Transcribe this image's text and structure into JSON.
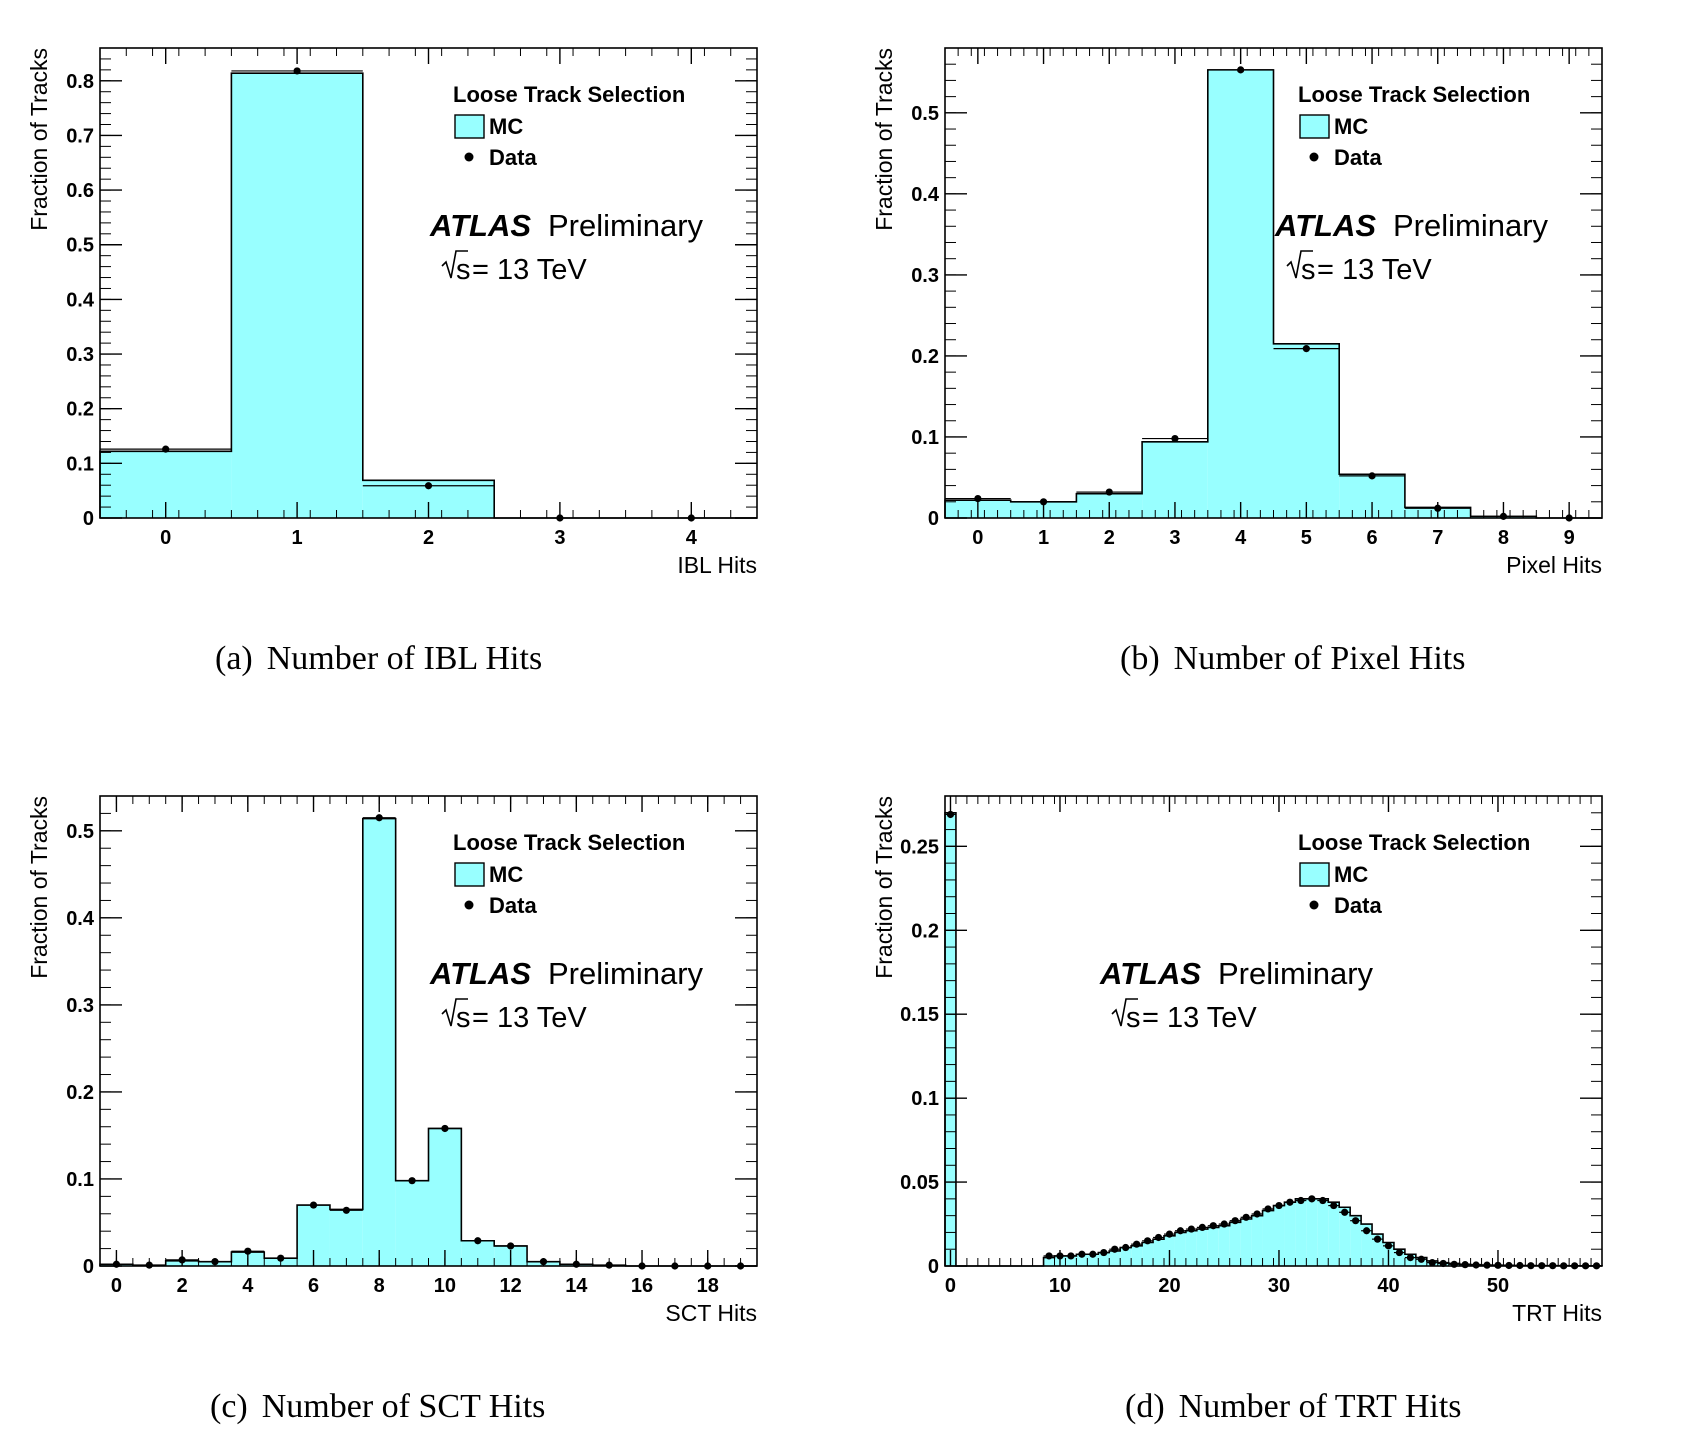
{
  "colors": {
    "mc_fill": "#98ffff",
    "frame": "#000000",
    "data": "#000000"
  },
  "chart_data": [
    {
      "type": "bar",
      "xlabel": "IBL Hits",
      "ylabel": "Fraction of Tracks",
      "xlim": [
        -0.5,
        4.5
      ],
      "ylim": [
        0,
        0.86
      ],
      "xticks": [
        "0",
        "1",
        "2",
        "3",
        "4"
      ],
      "yticks": [
        "0",
        "0.1",
        "0.2",
        "0.3",
        "0.4",
        "0.5",
        "0.6",
        "0.7",
        "0.8"
      ],
      "bin_width": 1,
      "series": [
        {
          "name": "MC",
          "x": [
            0,
            1,
            2,
            3,
            4
          ],
          "values": [
            0.122,
            0.814,
            0.069,
            0.0,
            0.0
          ]
        },
        {
          "name": "Data",
          "x": [
            0,
            1,
            2,
            3,
            4
          ],
          "values": [
            0.126,
            0.818,
            0.059,
            0.0,
            0.0
          ]
        }
      ],
      "legend": {
        "header": "Loose Track Selection",
        "mc": "MC",
        "data": "Data",
        "position": "top-right"
      },
      "atlas": {
        "name": "ATLAS",
        "status": "Preliminary",
        "energy_prefix": "s",
        "energy_suffix": " = 13 TeV"
      },
      "caption": {
        "label": "(a)",
        "text": "Number of IBL Hits"
      }
    },
    {
      "type": "bar",
      "xlabel": "Pixel Hits",
      "ylabel": "Fraction of Tracks",
      "xlim": [
        -0.5,
        9.5
      ],
      "ylim": [
        0,
        0.58
      ],
      "xticks": [
        "0",
        "1",
        "2",
        "3",
        "4",
        "5",
        "6",
        "7",
        "8",
        "9"
      ],
      "yticks": [
        "0",
        "0.1",
        "0.2",
        "0.3",
        "0.4",
        "0.5"
      ],
      "bin_width": 1,
      "series": [
        {
          "name": "MC",
          "x": [
            0,
            1,
            2,
            3,
            4,
            5,
            6,
            7,
            8,
            9
          ],
          "values": [
            0.022,
            0.02,
            0.03,
            0.094,
            0.553,
            0.215,
            0.054,
            0.013,
            0.002,
            0.0
          ]
        },
        {
          "name": "Data",
          "x": [
            0,
            1,
            2,
            3,
            4,
            5,
            6,
            7,
            8,
            9
          ],
          "values": [
            0.024,
            0.02,
            0.032,
            0.098,
            0.553,
            0.209,
            0.052,
            0.012,
            0.002,
            0.0
          ]
        }
      ],
      "legend": {
        "header": "Loose Track Selection",
        "mc": "MC",
        "data": "Data",
        "position": "top-right"
      },
      "atlas": {
        "name": "ATLAS",
        "status": "Preliminary",
        "energy_prefix": "s",
        "energy_suffix": " = 13 TeV"
      },
      "caption": {
        "label": "(b)",
        "text": "Number of Pixel Hits"
      }
    },
    {
      "type": "bar",
      "xlabel": "SCT Hits",
      "ylabel": "Fraction of Tracks",
      "xlim": [
        -0.5,
        19.5
      ],
      "ylim": [
        0,
        0.54
      ],
      "xticks": [
        "0",
        "2",
        "4",
        "6",
        "8",
        "10",
        "12",
        "14",
        "16",
        "18"
      ],
      "xtick_values": [
        0,
        2,
        4,
        6,
        8,
        10,
        12,
        14,
        16,
        18
      ],
      "yticks": [
        "0",
        "0.1",
        "0.2",
        "0.3",
        "0.4",
        "0.5"
      ],
      "bin_width": 1,
      "series": [
        {
          "name": "MC",
          "x": [
            0,
            1,
            2,
            3,
            4,
            5,
            6,
            7,
            8,
            9,
            10,
            11,
            12,
            13,
            14,
            15,
            16,
            17,
            18,
            19
          ],
          "values": [
            0.002,
            0.001,
            0.006,
            0.005,
            0.016,
            0.009,
            0.07,
            0.065,
            0.514,
            0.098,
            0.158,
            0.029,
            0.023,
            0.005,
            0.002,
            0.001,
            0.0,
            0.0,
            0.0,
            0.0
          ]
        },
        {
          "name": "Data",
          "x": [
            0,
            1,
            2,
            3,
            4,
            5,
            6,
            7,
            8,
            9,
            10,
            11,
            12,
            13,
            14,
            15,
            16,
            17,
            18,
            19
          ],
          "values": [
            0.002,
            0.001,
            0.007,
            0.005,
            0.017,
            0.009,
            0.07,
            0.064,
            0.515,
            0.098,
            0.158,
            0.029,
            0.023,
            0.005,
            0.002,
            0.001,
            0.0,
            0.0,
            0.0,
            0.0
          ]
        }
      ],
      "legend": {
        "header": "Loose Track Selection",
        "mc": "MC",
        "data": "Data",
        "position": "top-right"
      },
      "atlas": {
        "name": "ATLAS",
        "status": "Preliminary",
        "energy_prefix": "s",
        "energy_suffix": " = 13 TeV"
      },
      "caption": {
        "label": "(c)",
        "text": "Number of SCT Hits"
      }
    },
    {
      "type": "bar",
      "xlabel": "TRT Hits",
      "ylabel": "Fraction of Tracks",
      "xlim": [
        -0.5,
        59.5
      ],
      "ylim": [
        0,
        0.28
      ],
      "xticks": [
        "0",
        "10",
        "20",
        "30",
        "40",
        "50"
      ],
      "xtick_values": [
        0,
        10,
        20,
        30,
        40,
        50
      ],
      "yticks": [
        "0",
        "0.05",
        "0.1",
        "0.15",
        "0.2",
        "0.25"
      ],
      "yticks_values": [
        0,
        0.05,
        0.1,
        0.15,
        0.2,
        0.25
      ],
      "bin_width": 1,
      "series": [
        {
          "name": "MC",
          "x": [
            0,
            1,
            2,
            3,
            4,
            5,
            6,
            7,
            8,
            9,
            10,
            11,
            12,
            13,
            14,
            15,
            16,
            17,
            18,
            19,
            20,
            21,
            22,
            23,
            24,
            25,
            26,
            27,
            28,
            29,
            30,
            31,
            32,
            33,
            34,
            35,
            36,
            37,
            38,
            39,
            40,
            41,
            42,
            43,
            44,
            45,
            46,
            47,
            48,
            49,
            50,
            51,
            52,
            53,
            54,
            55,
            56,
            57,
            58,
            59
          ],
          "values": [
            0.27,
            0,
            0,
            0,
            0,
            0,
            0,
            0,
            0,
            0.005,
            0.006,
            0.006,
            0.007,
            0.007,
            0.008,
            0.009,
            0.011,
            0.012,
            0.014,
            0.016,
            0.018,
            0.02,
            0.021,
            0.022,
            0.023,
            0.024,
            0.026,
            0.028,
            0.03,
            0.033,
            0.036,
            0.038,
            0.04,
            0.04,
            0.04,
            0.038,
            0.035,
            0.03,
            0.025,
            0.019,
            0.014,
            0.01,
            0.007,
            0.005,
            0.003,
            0.002,
            0.0015,
            0.001,
            0.0008,
            0.0006,
            0.0005,
            0.0004,
            0.0003,
            0.0003,
            0.0002,
            0.0002,
            0.0002,
            0.0001,
            0.0001,
            0.0001
          ]
        },
        {
          "name": "Data",
          "x": [
            0,
            1,
            2,
            3,
            4,
            5,
            6,
            7,
            8,
            9,
            10,
            11,
            12,
            13,
            14,
            15,
            16,
            17,
            18,
            19,
            20,
            21,
            22,
            23,
            24,
            25,
            26,
            27,
            28,
            29,
            30,
            31,
            32,
            33,
            34,
            35,
            36,
            37,
            38,
            39,
            40,
            41,
            42,
            43,
            44,
            45,
            46,
            47,
            48,
            49,
            50,
            51,
            52,
            53,
            54,
            55,
            56,
            57,
            58,
            59
          ],
          "values": [
            0.269,
            0,
            0,
            0,
            0,
            0,
            0,
            0,
            0,
            0.006,
            0.006,
            0.006,
            0.007,
            0.007,
            0.008,
            0.01,
            0.011,
            0.013,
            0.015,
            0.017,
            0.019,
            0.021,
            0.022,
            0.023,
            0.024,
            0.025,
            0.027,
            0.029,
            0.031,
            0.034,
            0.036,
            0.038,
            0.039,
            0.04,
            0.039,
            0.036,
            0.032,
            0.027,
            0.021,
            0.016,
            0.012,
            0.008,
            0.005,
            0.004,
            0.002,
            0.0015,
            0.001,
            0.0008,
            0.0006,
            0.0005,
            0.0004,
            0.0003,
            0.0003,
            0.0002,
            0.0002,
            0.0002,
            0.0001,
            0.0001,
            0.0001,
            0.0001
          ]
        }
      ],
      "legend": {
        "header": "Loose Track Selection",
        "mc": "MC",
        "data": "Data",
        "position": "top-right"
      },
      "atlas": {
        "name": "ATLAS",
        "status": "Preliminary",
        "energy_prefix": "s",
        "energy_suffix": " = 13 TeV",
        "position": "middle-left"
      },
      "caption": {
        "label": "(d)",
        "text": "Number of TRT Hits"
      }
    }
  ]
}
